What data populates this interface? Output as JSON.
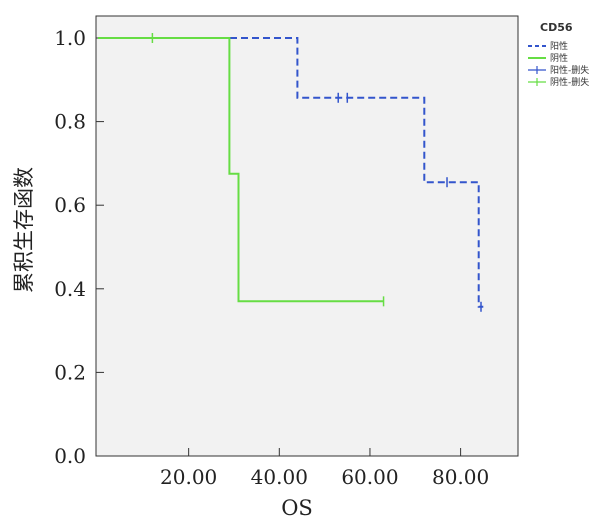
{
  "chart_data": {
    "type": "line",
    "subtype": "kaplan-meier",
    "xlabel": "OS",
    "ylabel": "累积生存函数",
    "xlim": [
      0,
      92
    ],
    "ylim": [
      0,
      1.05
    ],
    "x_ticks": [
      20,
      40,
      60,
      80
    ],
    "x_tick_labels": [
      "20.00",
      "40.00",
      "60.00",
      "80.00"
    ],
    "y_ticks": [
      0,
      0.2,
      0.4,
      0.6,
      0.8,
      1.0
    ],
    "y_tick_labels": [
      "0.0",
      "0.2",
      "0.4",
      "0.6",
      "0.8",
      "1.0"
    ],
    "legend": {
      "title": "CD56",
      "placement": "top-right",
      "entries": [
        "阳性",
        "阴性",
        "阳性-删失",
        "阴性-删失"
      ]
    },
    "series": [
      {
        "name": "阳性",
        "color": "#3355cc",
        "dash": "dashed",
        "steps": [
          [
            0,
            1.0
          ],
          [
            44,
            1.0
          ],
          [
            44,
            0.857
          ],
          [
            72,
            0.857
          ],
          [
            72,
            0.655
          ],
          [
            84,
            0.655
          ],
          [
            84,
            0.357
          ],
          [
            85,
            0.357
          ]
        ],
        "censored": [
          [
            53,
            0.857
          ],
          [
            55,
            0.857
          ],
          [
            77,
            0.655
          ],
          [
            84.5,
            0.357
          ]
        ]
      },
      {
        "name": "阴性",
        "color": "#66dd44",
        "dash": "solid",
        "steps": [
          [
            0,
            1.0
          ],
          [
            29,
            1.0
          ],
          [
            29,
            0.675
          ],
          [
            31,
            0.675
          ],
          [
            31,
            0.37
          ],
          [
            63,
            0.37
          ]
        ],
        "censored": [
          [
            12,
            1.0
          ],
          [
            63,
            0.37
          ]
        ]
      }
    ]
  }
}
